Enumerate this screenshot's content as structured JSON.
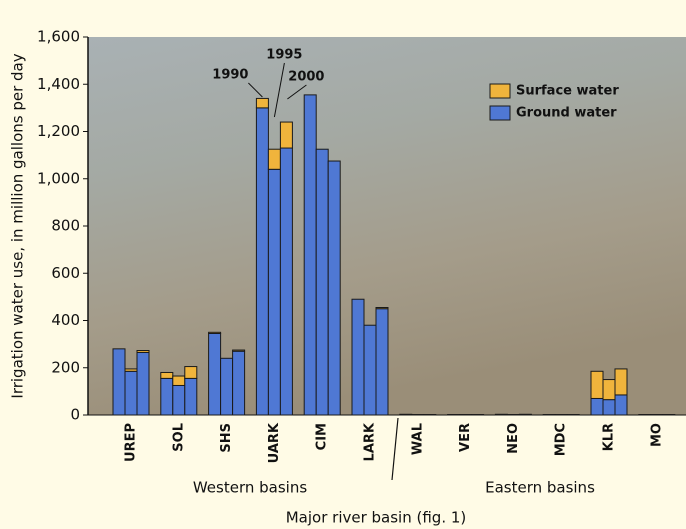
{
  "chart_data": {
    "type": "grouped-stacked-bar",
    "ylabel": "Irrigation water use, in million gallons per day",
    "xlabel": "Major river basin (fig. 1)",
    "categories": [
      "UREP",
      "SOL",
      "SHS",
      "UARK",
      "CIM",
      "LARK",
      "WAL",
      "VER",
      "NEO",
      "MDC",
      "KLR",
      "MO"
    ],
    "years": [
      "1990",
      "1995",
      "2000"
    ],
    "groups": [
      "Western basins",
      "Eastern basins"
    ],
    "series": [
      {
        "name": "Surface water",
        "color": "#f0b43c",
        "values": [
          [
            0,
            10,
            8
          ],
          [
            25,
            40,
            50
          ],
          [
            5,
            0,
            5
          ],
          [
            40,
            85,
            110
          ],
          [
            0,
            0,
            0
          ],
          [
            0,
            0,
            5
          ],
          [
            0,
            0,
            0
          ],
          [
            0,
            0,
            0
          ],
          [
            0,
            0,
            0
          ],
          [
            0,
            0,
            0
          ],
          [
            115,
            85,
            110
          ],
          [
            0,
            0,
            0
          ]
        ]
      },
      {
        "name": "Ground water",
        "color": "#4f78d4",
        "values": [
          [
            280,
            185,
            265
          ],
          [
            155,
            125,
            155
          ],
          [
            345,
            240,
            270
          ],
          [
            1300,
            1040,
            1130
          ],
          [
            1355,
            1125,
            1075
          ],
          [
            490,
            380,
            450
          ],
          [
            3,
            2,
            2
          ],
          [
            2,
            2,
            2
          ],
          [
            3,
            2,
            3
          ],
          [
            2,
            2,
            2
          ],
          [
            70,
            65,
            85
          ],
          [
            2,
            2,
            2
          ]
        ]
      }
    ],
    "ylim": [
      0,
      1600
    ],
    "yticks": [
      0,
      200,
      400,
      600,
      800,
      {
        "value": 1000,
        "label": "1,000"
      },
      {
        "value": 1200,
        "label": "1,200"
      },
      {
        "value": 1400,
        "label": "1,400"
      },
      {
        "value": 1600,
        "label": "1,600"
      }
    ]
  }
}
